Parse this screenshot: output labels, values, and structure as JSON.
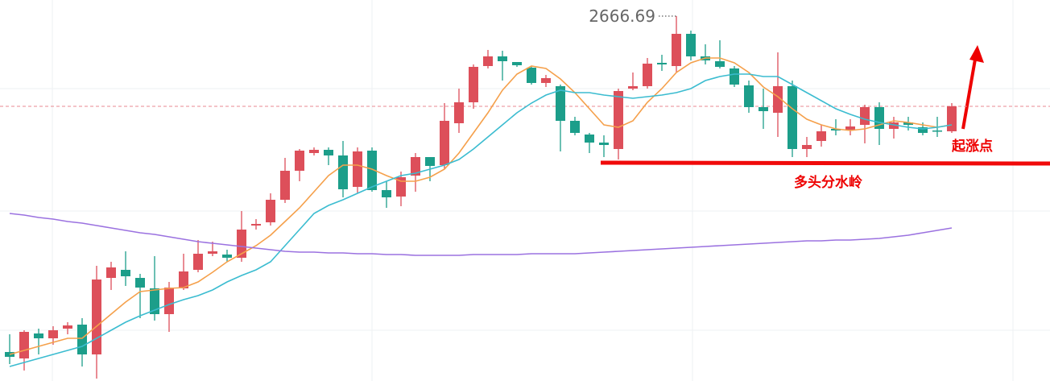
{
  "chart_data": {
    "type": "candlestick",
    "up_color": "#dd4f5a",
    "down_color": "#1c9e8a",
    "ylim": [
      2553.44,
      2671.69
    ],
    "open": [
      2562.44,
      2560.44,
      2568.19,
      2566.69,
      2569.69,
      2570.94,
      2561.69,
      2585.44,
      2587.94,
      2585.44,
      2582.19,
      2574.19,
      2582.19,
      2587.94,
      2592.94,
      2592.69,
      2591.69,
      2601.69,
      2602.69,
      2609.69,
      2618.69,
      2624.19,
      2625.19,
      2623.44,
      2613.69,
      2624.94,
      2612.69,
      2610.69,
      2617.19,
      2622.94,
      2620.44,
      2633.44,
      2639.94,
      2651.19,
      2654.19,
      2652.44,
      2650.69,
      2645.94,
      2644.94,
      2634.19,
      2629.94,
      2627.44,
      2625.44,
      2644.19,
      2644.94,
      2652.19,
      2651.19,
      2661.19,
      2654.19,
      2652.69,
      2650.44,
      2645.19,
      2638.44,
      2636.69,
      2644.94,
      2625.44,
      2627.94,
      2631.69,
      2631.44,
      2632.94,
      2638.44,
      2631.69,
      2633.69,
      2632.19,
      2631.19,
      2630.94
    ],
    "high": [
      2567.94,
      2569.19,
      2569.69,
      2570.44,
      2571.69,
      2572.94,
      2589.19,
      2590.44,
      2593.69,
      2586.69,
      2592.19,
      2584.19,
      2592.94,
      2597.19,
      2596.69,
      2594.19,
      2606.19,
      2603.69,
      2611.69,
      2622.69,
      2625.44,
      2625.94,
      2625.94,
      2627.94,
      2625.94,
      2625.94,
      2615.44,
      2618.44,
      2624.19,
      2622.94,
      2639.69,
      2644.19,
      2651.69,
      2656.19,
      2655.94,
      2652.44,
      2651.19,
      2648.44,
      2645.44,
      2635.44,
      2630.44,
      2629.69,
      2644.19,
      2649.19,
      2653.69,
      2654.69,
      2666.69,
      2662.19,
      2657.94,
      2659.19,
      2651.19,
      2646.69,
      2644.19,
      2655.44,
      2646.69,
      2629.19,
      2632.94,
      2634.69,
      2634.69,
      2639.19,
      2639.94,
      2635.44,
      2635.44,
      2633.69,
      2635.44,
      2639.69
    ],
    "low": [
      2558.69,
      2556.69,
      2561.69,
      2564.69,
      2567.94,
      2557.94,
      2554.19,
      2581.69,
      2582.94,
      2572.94,
      2572.19,
      2568.69,
      2581.69,
      2587.19,
      2592.19,
      2590.44,
      2590.44,
      2600.44,
      2601.69,
      2608.69,
      2615.44,
      2623.44,
      2620.44,
      2610.44,
      2611.69,
      2612.19,
      2607.19,
      2607.69,
      2612.19,
      2615.44,
      2619.19,
      2630.44,
      2637.94,
      2650.44,
      2646.69,
      2650.94,
      2645.44,
      2644.69,
      2624.69,
      2629.69,
      2624.19,
      2622.94,
      2622.19,
      2643.69,
      2644.19,
      2649.69,
      2649.19,
      2652.94,
      2651.69,
      2650.44,
      2644.69,
      2636.69,
      2631.69,
      2629.19,
      2622.94,
      2622.94,
      2626.19,
      2629.69,
      2629.69,
      2627.19,
      2626.69,
      2628.69,
      2631.19,
      2629.69,
      2629.19,
      2630.44
    ],
    "close": [
      2560.94,
      2568.69,
      2566.69,
      2569.19,
      2570.69,
      2561.69,
      2584.94,
      2588.69,
      2585.94,
      2582.44,
      2574.19,
      2582.44,
      2587.44,
      2592.94,
      2593.69,
      2591.69,
      2600.44,
      2602.19,
      2609.69,
      2618.69,
      2624.94,
      2625.19,
      2623.44,
      2612.94,
      2624.69,
      2612.69,
      2610.44,
      2616.69,
      2622.94,
      2620.19,
      2634.19,
      2639.94,
      2650.94,
      2654.19,
      2652.69,
      2651.44,
      2645.94,
      2647.44,
      2634.19,
      2630.44,
      2627.44,
      2626.69,
      2643.44,
      2644.94,
      2651.94,
      2651.69,
      2661.19,
      2654.19,
      2652.94,
      2650.94,
      2645.44,
      2638.44,
      2637.19,
      2644.94,
      2625.44,
      2626.69,
      2630.94,
      2631.19,
      2632.44,
      2638.44,
      2631.69,
      2633.69,
      2632.94,
      2630.44,
      2630.94,
      2638.69
    ],
    "lines": [
      {
        "color": "#f5a04b",
        "values": [
          2561.69,
          2562.94,
          2564.19,
          2565.44,
          2566.69,
          2566.69,
          2570.44,
          2574.19,
          2577.94,
          2581.19,
          2581.69,
          2582.19,
          2582.44,
          2584.19,
          2587.19,
          2590.44,
          2592.94,
          2595.44,
          2598.69,
          2602.94,
          2607.19,
          2612.19,
          2617.19,
          2620.44,
          2620.44,
          2619.19,
          2617.19,
          2615.44,
          2615.44,
          2616.69,
          2619.19,
          2624.19,
          2630.44,
          2636.69,
          2643.69,
          2648.69,
          2651.19,
          2650.44,
          2647.19,
          2642.94,
          2637.94,
          2632.94,
          2632.19,
          2634.19,
          2639.94,
          2644.19,
          2649.19,
          2652.19,
          2653.69,
          2653.69,
          2652.19,
          2649.19,
          2644.69,
          2641.69,
          2637.94,
          2634.69,
          2632.94,
          2631.69,
          2631.19,
          2631.69,
          2632.94,
          2634.19,
          2633.69,
          2632.94,
          2632.19,
          2632.94
        ]
      },
      {
        "color": "#3bbcd0",
        "values": [
          2557.94,
          2559.19,
          2560.44,
          2561.69,
          2562.94,
          2564.19,
          2566.69,
          2569.19,
          2571.69,
          2573.69,
          2575.44,
          2577.19,
          2578.69,
          2579.94,
          2581.69,
          2584.19,
          2586.19,
          2587.94,
          2590.44,
          2595.44,
          2600.44,
          2605.44,
          2607.94,
          2609.69,
          2611.69,
          2613.69,
          2615.44,
          2617.19,
          2617.94,
          2619.19,
          2620.44,
          2622.19,
          2625.44,
          2629.19,
          2632.94,
          2636.69,
          2639.69,
          2642.19,
          2643.69,
          2642.94,
          2642.94,
          2642.19,
          2641.69,
          2641.19,
          2641.69,
          2642.19,
          2642.94,
          2644.19,
          2646.69,
          2647.94,
          2648.69,
          2648.69,
          2647.94,
          2647.94,
          2645.44,
          2642.94,
          2640.44,
          2637.94,
          2636.19,
          2634.69,
          2633.69,
          2632.94,
          2632.19,
          2631.69,
          2632.19,
          2632.94
        ]
      },
      {
        "color": "#9b72e0",
        "values": [
          2605.44,
          2604.94,
          2604.19,
          2603.69,
          2602.94,
          2602.44,
          2601.69,
          2600.94,
          2600.19,
          2599.44,
          2598.94,
          2598.19,
          2597.44,
          2596.69,
          2596.19,
          2595.69,
          2595.19,
          2594.69,
          2594.19,
          2593.69,
          2593.44,
          2593.44,
          2593.19,
          2593.19,
          2592.94,
          2592.94,
          2592.69,
          2592.69,
          2592.44,
          2592.44,
          2592.44,
          2592.44,
          2592.69,
          2592.69,
          2592.69,
          2592.69,
          2592.94,
          2592.94,
          2592.94,
          2592.94,
          2593.19,
          2593.44,
          2593.69,
          2593.94,
          2594.19,
          2594.44,
          2594.69,
          2594.94,
          2595.19,
          2595.44,
          2595.69,
          2595.94,
          2596.19,
          2596.44,
          2596.69,
          2596.94,
          2596.94,
          2597.19,
          2597.19,
          2597.44,
          2597.69,
          2598.19,
          2598.69,
          2599.44,
          2600.19,
          2600.94
        ]
      }
    ],
    "annotations": [
      "多头分水岭",
      "起涨点"
    ]
  }
}
